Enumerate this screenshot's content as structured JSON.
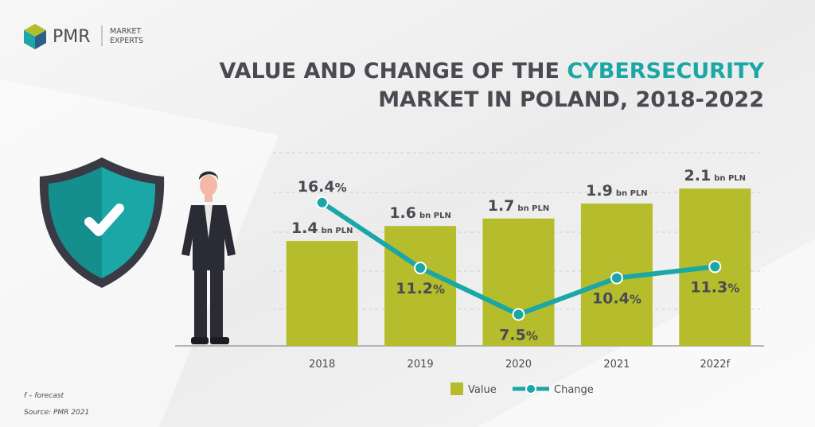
{
  "logo": {
    "name": "PMR",
    "line1": "MARKET",
    "line2": "EXPERTS"
  },
  "chart_data": {
    "type": "bar-line",
    "title_parts": [
      "VALUE AND CHANGE OF THE ",
      "CYBERSECURITY",
      "MARKET IN POLAND, 2018-2022"
    ],
    "categories": [
      "2018",
      "2019",
      "2020",
      "2021",
      "2022f"
    ],
    "series": [
      {
        "name": "Value",
        "color": "#b5bd2c",
        "unit": "bn PLN",
        "values": [
          1.4,
          1.6,
          1.7,
          1.9,
          2.1
        ]
      },
      {
        "name": "Change",
        "color": "#1aa7a5",
        "unit": "%",
        "axis": "y2",
        "values": [
          16.4,
          11.2,
          7.5,
          10.4,
          11.3
        ]
      }
    ],
    "ylim": [
      0,
      2.6
    ],
    "y2lim": [
      5,
      20.5
    ],
    "notes": [
      "f – forecast",
      "Source: PMR 2021"
    ]
  }
}
